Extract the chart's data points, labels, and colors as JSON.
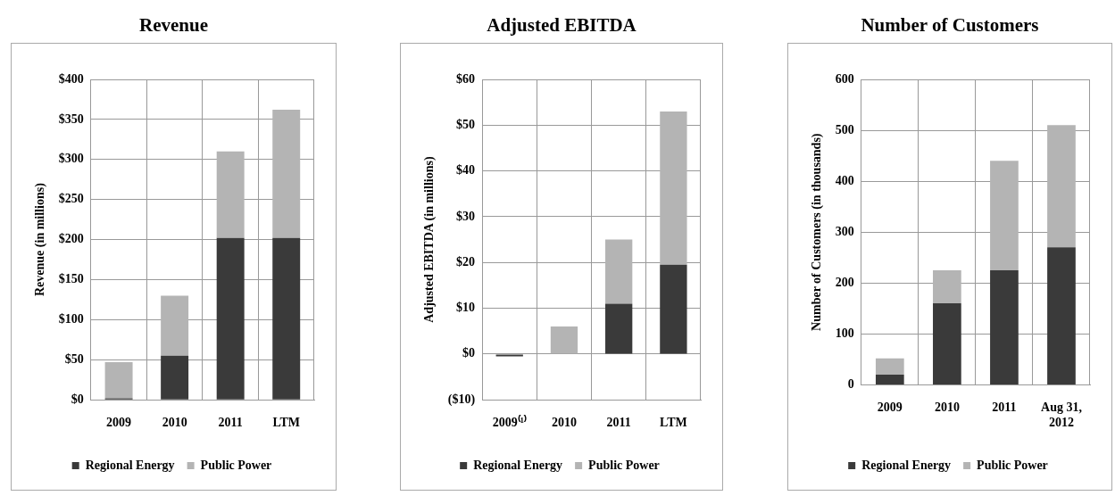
{
  "chart_data": [
    {
      "type": "bar",
      "title": "Revenue",
      "ylabel": "Revenue (in millions)",
      "stacked": true,
      "categories": [
        "2009",
        "2010",
        "2011",
        "LTM"
      ],
      "series": [
        {
          "name": "Regional Energy",
          "color": "#3a3a3a",
          "values": [
            2,
            55,
            202,
            202
          ]
        },
        {
          "name": "Public Power",
          "color": "#b4b4b4",
          "values": [
            45,
            75,
            108,
            160
          ]
        }
      ],
      "ylim": [
        0,
        400
      ],
      "yticks": [
        {
          "value": 0,
          "label": "$0"
        },
        {
          "value": 50,
          "label": "$50"
        },
        {
          "value": 100,
          "label": "$100"
        },
        {
          "value": 150,
          "label": "$150"
        },
        {
          "value": 200,
          "label": "$200"
        },
        {
          "value": 250,
          "label": "$250"
        },
        {
          "value": 300,
          "label": "$300"
        },
        {
          "value": 350,
          "label": "$350"
        },
        {
          "value": 400,
          "label": "$400"
        }
      ],
      "grid": true,
      "legend": "bottom"
    },
    {
      "type": "bar",
      "title": "Adjusted EBITDA",
      "ylabel": "Adjusted EBITDA (in millions)",
      "stacked": true,
      "categories": [
        "2009⁽¹⁾",
        "2010",
        "2011",
        "LTM"
      ],
      "series": [
        {
          "name": "Regional Energy",
          "color": "#3a3a3a",
          "values": [
            -0.5,
            0,
            11,
            19.5
          ]
        },
        {
          "name": "Public Power",
          "color": "#b4b4b4",
          "values": [
            0,
            6,
            14,
            33.5
          ]
        }
      ],
      "ylim": [
        -10,
        60
      ],
      "yticks": [
        {
          "value": -10,
          "label": "($10)"
        },
        {
          "value": 0,
          "label": "$0"
        },
        {
          "value": 10,
          "label": "$10"
        },
        {
          "value": 20,
          "label": "$20"
        },
        {
          "value": 30,
          "label": "$30"
        },
        {
          "value": 40,
          "label": "$40"
        },
        {
          "value": 50,
          "label": "$50"
        },
        {
          "value": 60,
          "label": "$60"
        }
      ],
      "grid": true,
      "legend": "bottom"
    },
    {
      "type": "bar",
      "title": "Number of Customers",
      "ylabel": "Number of Customers (in thousands)",
      "stacked": true,
      "categories": [
        "2009",
        "2010",
        "2011",
        "Aug 31, 2012"
      ],
      "series": [
        {
          "name": "Regional Energy",
          "color": "#3a3a3a",
          "values": [
            20,
            160,
            225,
            270
          ]
        },
        {
          "name": "Public Power",
          "color": "#b4b4b4",
          "values": [
            32,
            65,
            215,
            240
          ]
        }
      ],
      "ylim": [
        0,
        600
      ],
      "yticks": [
        0,
        100,
        200,
        300,
        400,
        500,
        600
      ],
      "grid": true,
      "legend": "bottom"
    }
  ]
}
